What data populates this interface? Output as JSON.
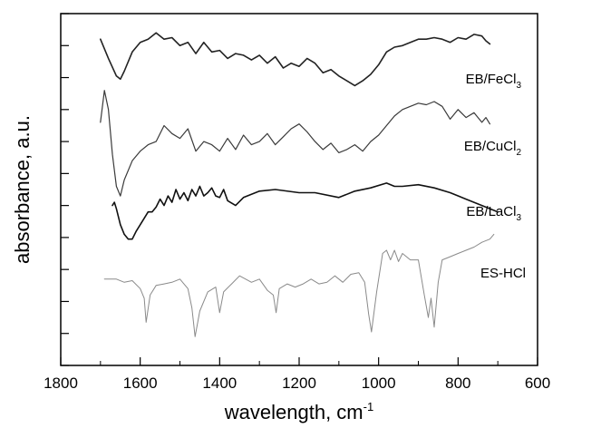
{
  "chart_data": {
    "type": "line",
    "xlabel_text": "wavelength, cm",
    "xlabel_sup": "-1",
    "ylabel": "absorbance, a.u.",
    "xlim": [
      1800,
      600
    ],
    "x_reversed": true,
    "x_ticks": [
      "1800",
      "1600",
      "1400",
      "1200",
      "1000",
      "800",
      "600"
    ],
    "y_ticks_labeled": false,
    "ylim": [
      0,
      11
    ],
    "y_tick_count": 12,
    "grid": false,
    "series": [
      {
        "name": "EB/FeCl3",
        "label_main": "EB/FeCl",
        "label_sub": "3",
        "color": "#222222",
        "width": 1.6,
        "x": [
          1700,
          1680,
          1660,
          1650,
          1640,
          1620,
          1600,
          1580,
          1560,
          1540,
          1520,
          1500,
          1480,
          1460,
          1440,
          1420,
          1400,
          1380,
          1360,
          1340,
          1320,
          1300,
          1280,
          1260,
          1240,
          1220,
          1200,
          1180,
          1160,
          1140,
          1120,
          1100,
          1080,
          1060,
          1040,
          1020,
          1000,
          980,
          960,
          940,
          920,
          900,
          880,
          860,
          840,
          820,
          800,
          780,
          760,
          740,
          730,
          720
        ],
        "y": [
          10.2,
          9.6,
          9.05,
          8.95,
          9.2,
          9.8,
          10.1,
          10.2,
          10.4,
          10.2,
          10.25,
          10.0,
          10.1,
          9.75,
          10.1,
          9.8,
          9.85,
          9.6,
          9.75,
          9.7,
          9.55,
          9.7,
          9.45,
          9.65,
          9.3,
          9.45,
          9.35,
          9.6,
          9.45,
          9.15,
          9.25,
          9.05,
          8.9,
          8.75,
          8.9,
          9.1,
          9.4,
          9.8,
          9.95,
          10.0,
          10.1,
          10.2,
          10.2,
          10.25,
          10.2,
          10.1,
          10.25,
          10.2,
          10.35,
          10.3,
          10.15,
          10.05
        ]
      },
      {
        "name": "EB/CuCl2",
        "label_main": "EB/CuCl",
        "label_sub": "2",
        "color": "#3a3a3a",
        "width": 1.2,
        "x": [
          1700,
          1690,
          1680,
          1670,
          1660,
          1650,
          1640,
          1620,
          1600,
          1580,
          1560,
          1540,
          1520,
          1500,
          1480,
          1460,
          1440,
          1420,
          1400,
          1380,
          1360,
          1340,
          1320,
          1300,
          1280,
          1260,
          1240,
          1220,
          1200,
          1180,
          1160,
          1140,
          1120,
          1100,
          1080,
          1060,
          1040,
          1020,
          1000,
          980,
          960,
          940,
          920,
          900,
          880,
          860,
          840,
          820,
          800,
          780,
          760,
          740,
          730,
          720
        ],
        "y": [
          7.6,
          8.6,
          8.0,
          6.6,
          5.6,
          5.3,
          5.8,
          6.4,
          6.7,
          6.9,
          7.0,
          7.5,
          7.25,
          7.1,
          7.4,
          6.7,
          7.0,
          6.9,
          6.7,
          7.1,
          6.75,
          7.2,
          6.9,
          7.0,
          7.25,
          6.9,
          7.15,
          7.4,
          7.55,
          7.3,
          7.0,
          6.75,
          6.95,
          6.65,
          6.75,
          6.9,
          6.7,
          7.0,
          7.2,
          7.5,
          7.8,
          8.0,
          8.1,
          8.2,
          8.15,
          8.25,
          8.1,
          7.7,
          8.0,
          7.75,
          7.9,
          7.6,
          7.75,
          7.55
        ]
      },
      {
        "name": "EB/LaCl3",
        "label_main": "EB/LaCl",
        "label_sub": "3",
        "color": "#111111",
        "width": 1.6,
        "x": [
          1670,
          1665,
          1660,
          1650,
          1640,
          1630,
          1620,
          1610,
          1600,
          1590,
          1580,
          1570,
          1560,
          1550,
          1540,
          1530,
          1520,
          1510,
          1500,
          1490,
          1480,
          1470,
          1460,
          1450,
          1440,
          1430,
          1420,
          1410,
          1400,
          1390,
          1380,
          1360,
          1340,
          1300,
          1260,
          1200,
          1160,
          1100,
          1060,
          1020,
          980,
          960,
          940,
          900,
          860,
          820,
          780,
          740,
          700
        ],
        "y": [
          5.0,
          5.1,
          4.9,
          4.4,
          4.1,
          3.95,
          3.95,
          4.2,
          4.4,
          4.6,
          4.8,
          4.8,
          4.95,
          5.2,
          5.0,
          5.3,
          5.1,
          5.5,
          5.2,
          5.4,
          5.15,
          5.5,
          5.3,
          5.6,
          5.3,
          5.4,
          5.55,
          5.3,
          5.25,
          5.5,
          5.15,
          5.0,
          5.25,
          5.45,
          5.5,
          5.4,
          5.4,
          5.25,
          5.45,
          5.55,
          5.7,
          5.6,
          5.6,
          5.65,
          5.55,
          5.4,
          5.2,
          5.0,
          4.8
        ]
      },
      {
        "name": "ES-HCl",
        "label_main": "ES-HCl",
        "label_sub": "",
        "color": "#8a8a8a",
        "width": 1.0,
        "x": [
          1690,
          1660,
          1640,
          1620,
          1600,
          1590,
          1585,
          1575,
          1560,
          1540,
          1520,
          1500,
          1480,
          1470,
          1462,
          1450,
          1430,
          1410,
          1400,
          1390,
          1370,
          1350,
          1320,
          1300,
          1280,
          1265,
          1258,
          1250,
          1230,
          1210,
          1190,
          1170,
          1150,
          1130,
          1110,
          1090,
          1070,
          1050,
          1035,
          1025,
          1018,
          1005,
          990,
          980,
          970,
          960,
          950,
          940,
          920,
          900,
          885,
          875,
          868,
          860,
          850,
          840,
          820,
          800,
          780,
          760,
          740,
          720,
          710
        ],
        "y": [
          2.7,
          2.7,
          2.6,
          2.65,
          2.4,
          2.1,
          1.35,
          2.2,
          2.5,
          2.55,
          2.6,
          2.7,
          2.4,
          1.8,
          0.9,
          1.7,
          2.3,
          2.45,
          1.65,
          2.3,
          2.55,
          2.8,
          2.6,
          2.7,
          2.35,
          2.2,
          1.65,
          2.4,
          2.55,
          2.45,
          2.55,
          2.7,
          2.55,
          2.6,
          2.8,
          2.6,
          2.85,
          2.9,
          2.6,
          1.6,
          1.05,
          2.3,
          3.5,
          3.6,
          3.3,
          3.6,
          3.25,
          3.5,
          3.3,
          3.3,
          2.2,
          1.5,
          2.1,
          1.2,
          2.6,
          3.3,
          3.4,
          3.5,
          3.6,
          3.7,
          3.85,
          3.95,
          4.1
        ]
      }
    ]
  }
}
